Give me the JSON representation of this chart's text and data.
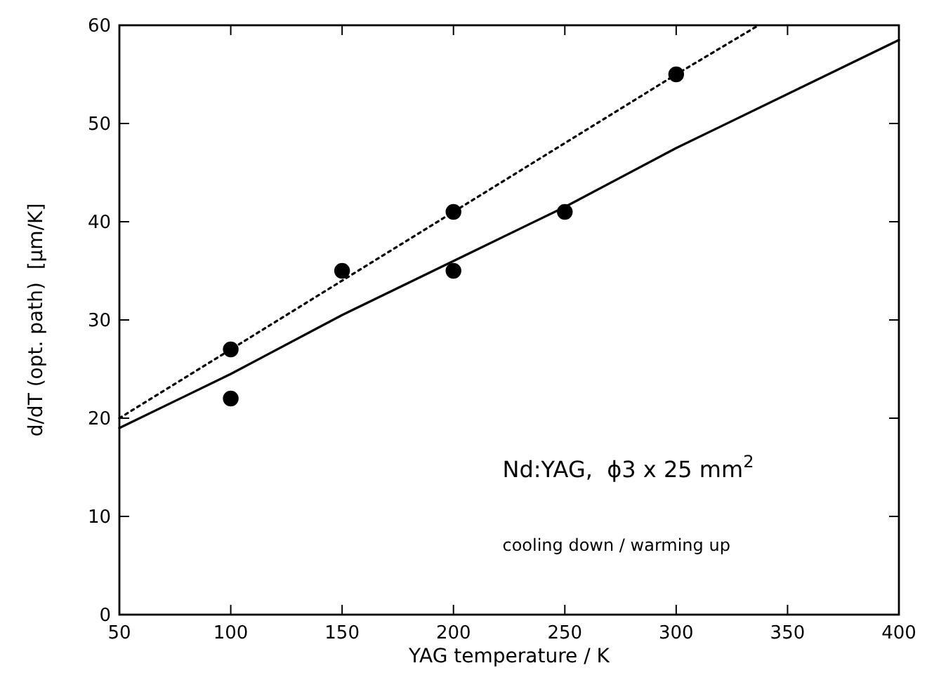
{
  "chart_data": {
    "type": "scatter",
    "xlabel": "YAG temperature / K",
    "ylabel": "d/dT (opt. path)  [μm/K]",
    "xlim": [
      50,
      400
    ],
    "xticks": [
      50,
      100,
      150,
      200,
      250,
      300,
      350,
      400
    ],
    "ylim": [
      0,
      60
    ],
    "yticks": [
      0,
      10,
      20,
      30,
      40,
      50,
      60
    ],
    "grid": false,
    "marker": "circle",
    "series": [
      {
        "color": "#000000",
        "x": [
          100,
          150,
          200,
          250
        ],
        "values": [
          22,
          35,
          35,
          41
        ]
      },
      {
        "color": "#000000",
        "x": [
          100,
          200,
          300
        ],
        "values": [
          27,
          41,
          55
        ]
      },
      {
        "type": "line",
        "color": "#000000",
        "line_style": "solid",
        "marker": "none",
        "x": [
          50,
          100,
          150,
          200,
          250,
          300,
          400
        ],
        "values": [
          19,
          24.5,
          30.5,
          36,
          41.5,
          47.5,
          58.5
        ]
      },
      {
        "type": "line",
        "color": "#000000",
        "line_style": "dotted",
        "marker": "none",
        "x": [
          50,
          100,
          200,
          300,
          337
        ],
        "values": [
          20,
          27,
          41,
          55,
          60
        ]
      }
    ],
    "annotations": [
      {
        "text": "Nd:YAG,  ϕ3 x 25 mm$^{2}$"
      },
      {
        "text": "cooling down / warming up"
      }
    ]
  }
}
